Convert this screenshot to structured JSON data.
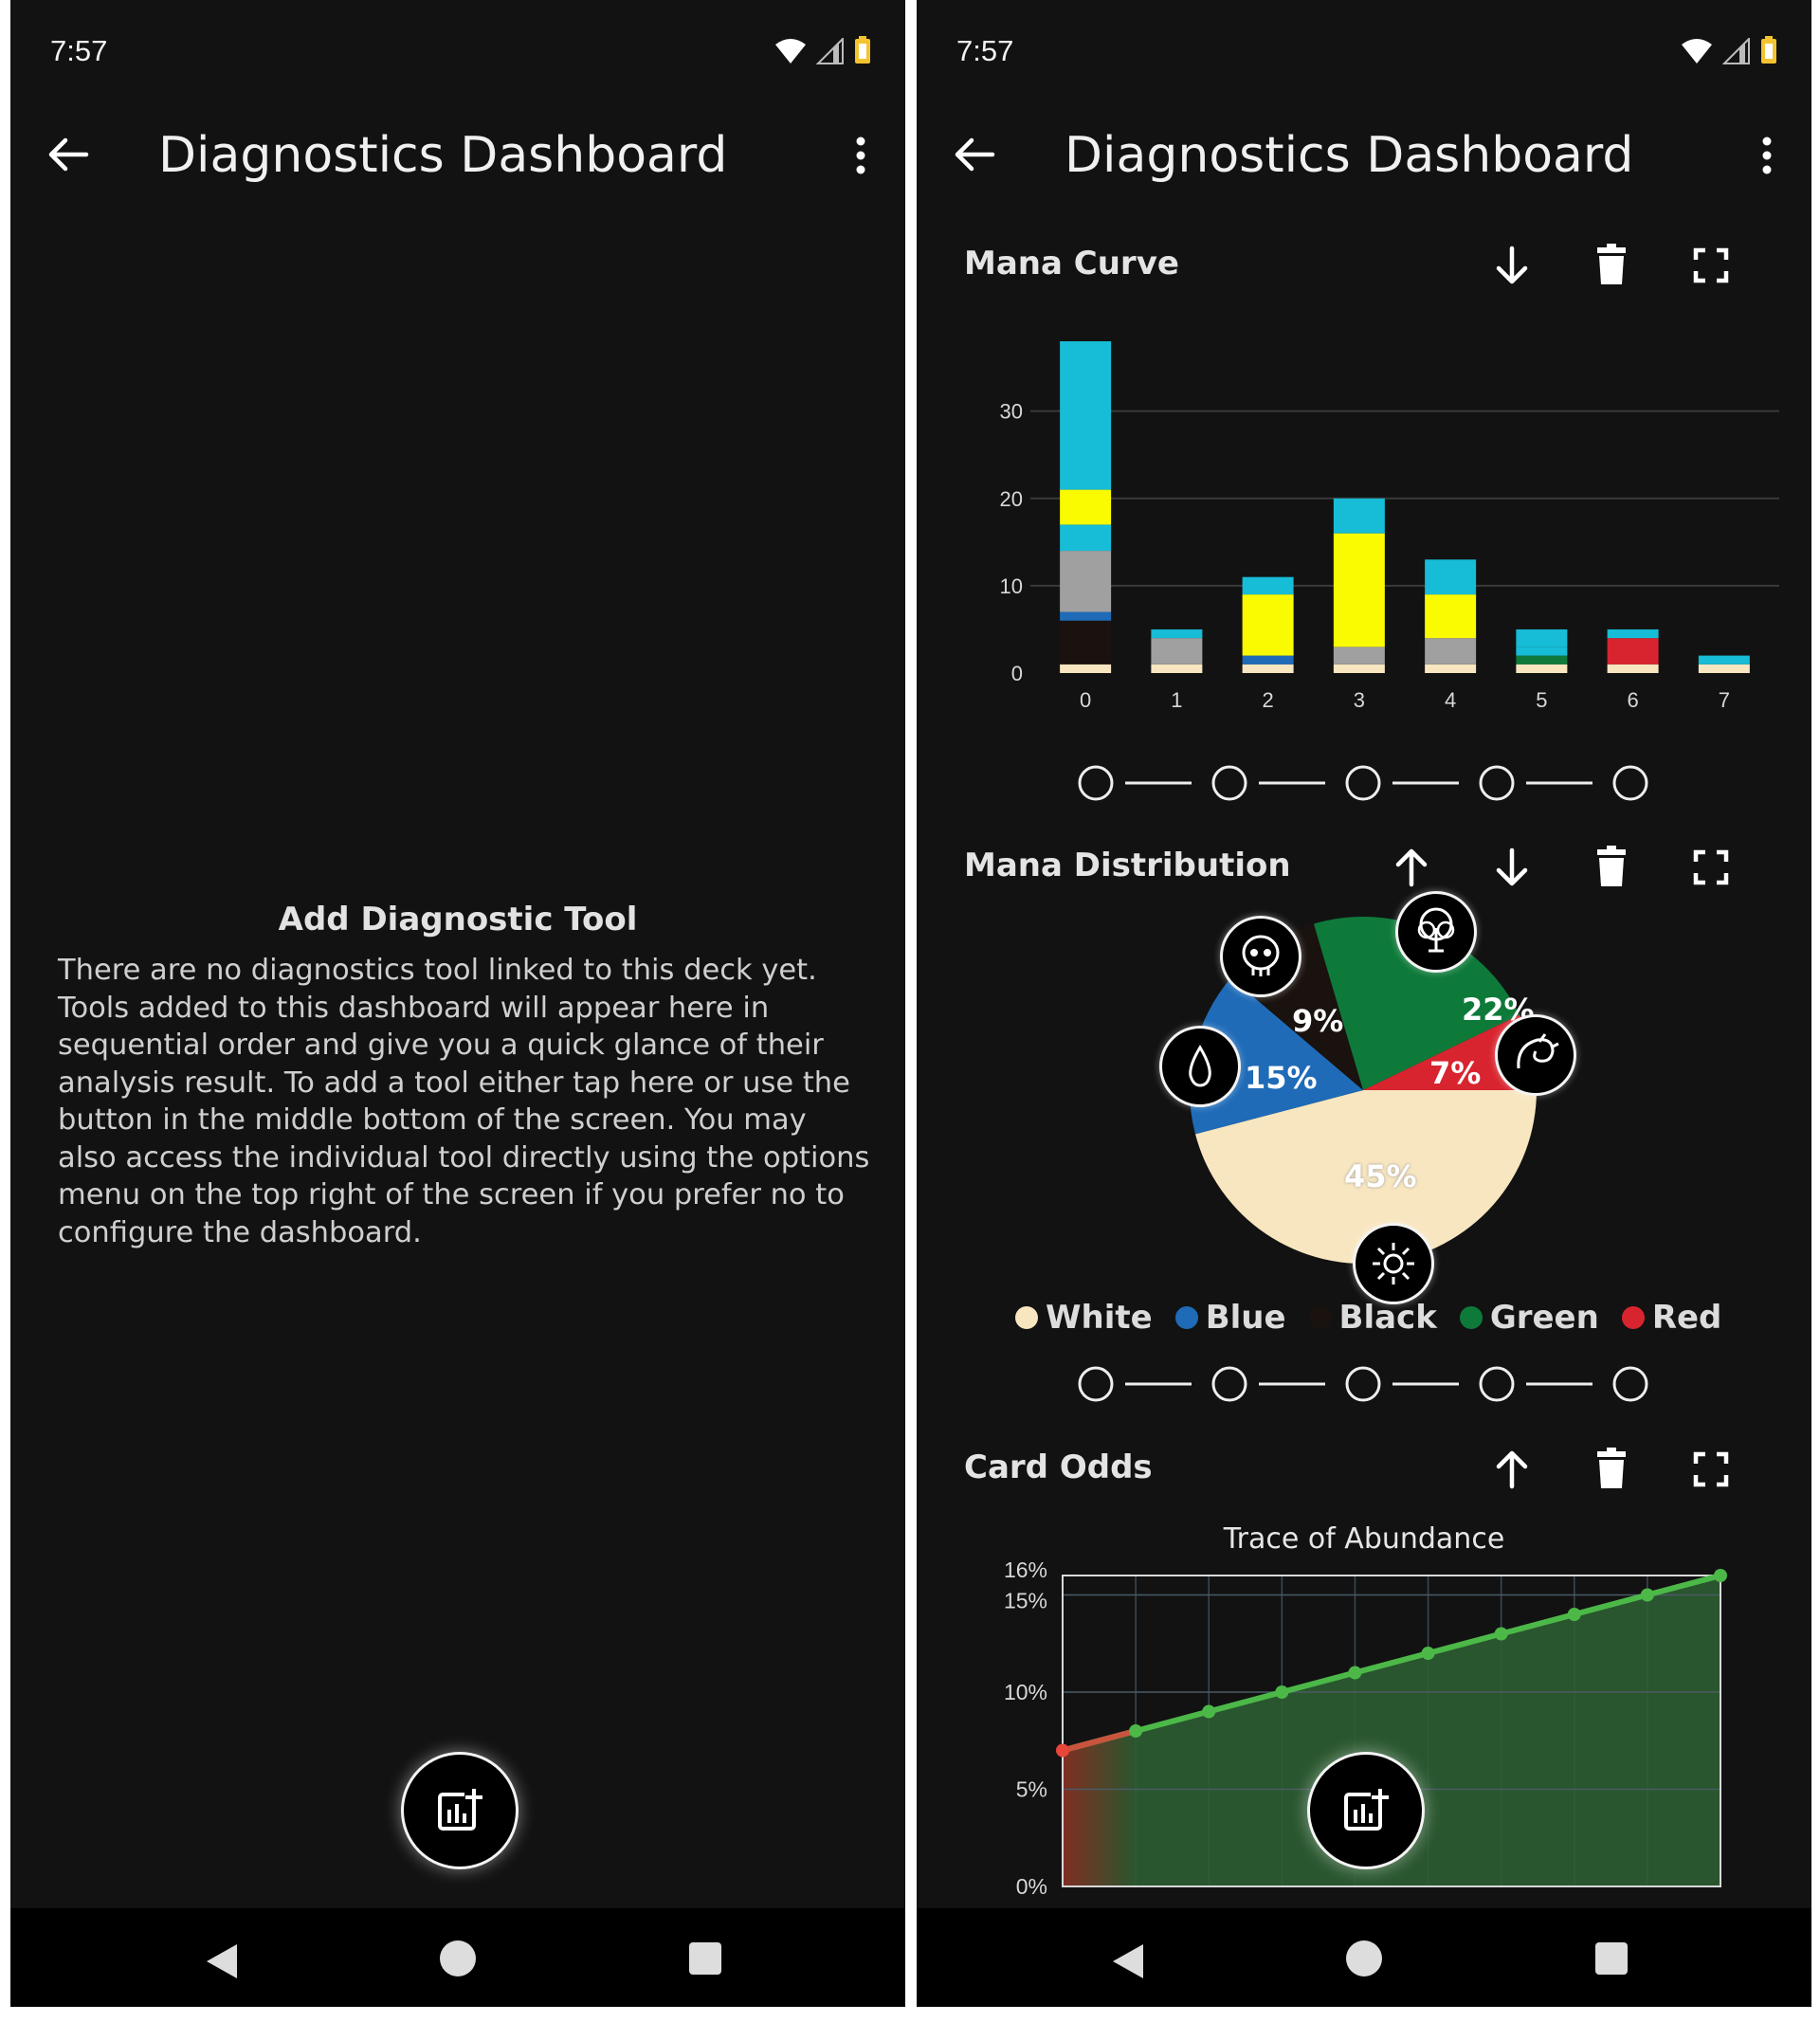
{
  "status": {
    "time": "7:57"
  },
  "appbar": {
    "title": "Diagnostics Dashboard"
  },
  "left": {
    "empty_title": "Add Diagnostic Tool",
    "empty_body": "There are no diagnostics tool linked to this deck yet. Tools added to this dashboard will appear here in sequential order and give you a quick glance of their analysis result. To add a tool either tap here or use the button in the middle bottom of the screen. You may also access the individual tool directly using the options menu on the top right of the screen if you prefer no to configure the dashboard."
  },
  "sections": {
    "mana_curve": "Mana Curve",
    "mana_distribution": "Mana Distribution",
    "card_odds": "Card Odds"
  },
  "pie_labels": {
    "white": "45%",
    "blue": "15%",
    "black": "9%",
    "green": "22%",
    "red": "7%"
  },
  "legend": [
    {
      "label": "White",
      "color": "#f8e6c0"
    },
    {
      "label": "Blue",
      "color": "#1f6bb8"
    },
    {
      "label": "Black",
      "color": "#1a120e"
    },
    {
      "label": "Green",
      "color": "#0e7a3a"
    },
    {
      "label": "Red",
      "color": "#d8242e"
    }
  ],
  "colors": {
    "background": "#121212",
    "cyan": "#17bcd6",
    "yellow": "#fafa00",
    "gray": "#a0a0a0",
    "cream": "#f8e6c0",
    "blue": "#1f6bb8",
    "black": "#1a120e",
    "green": "#0e7a3a",
    "red": "#d8242e",
    "line_green": "#4cb848"
  },
  "icons": [
    "arrow-back-icon",
    "more-vert-icon",
    "arrow-down-icon",
    "arrow-up-icon",
    "delete-icon",
    "fullscreen-icon",
    "add-chart-icon",
    "skull-icon",
    "tree-icon",
    "dragon-icon",
    "water-drop-icon",
    "sun-icon",
    "wifi-icon",
    "signal-icon",
    "battery-icon"
  ],
  "chart_data": [
    {
      "type": "bar",
      "title": "",
      "categories": [
        "0",
        "1",
        "2",
        "3",
        "4",
        "5",
        "6",
        "7"
      ],
      "ylim": [
        0,
        38
      ],
      "yticks": [
        "0",
        "10",
        "20",
        "30"
      ],
      "grid": true,
      "stacked": true,
      "series": [
        {
          "color": "#f8e6c0",
          "values": [
            1,
            1,
            1,
            1,
            1,
            1,
            1,
            1
          ]
        },
        {
          "color": "#1a120e",
          "values": [
            5,
            0,
            0,
            0,
            0,
            0,
            0,
            0
          ]
        },
        {
          "color": "#1f6bb8",
          "values": [
            1,
            0,
            1,
            0,
            0,
            0,
            0,
            0
          ]
        },
        {
          "color": "#0e7a3a",
          "values": [
            0,
            0,
            0,
            0,
            0,
            1,
            0,
            0
          ]
        },
        {
          "color": "#d8242e",
          "values": [
            0,
            0,
            0,
            0,
            0,
            0,
            3,
            0
          ]
        },
        {
          "color": "#a0a0a0",
          "values": [
            7,
            3,
            0,
            2,
            3,
            0,
            0,
            0
          ]
        },
        {
          "color": "#17bcd6",
          "values": [
            3,
            0,
            0,
            0,
            0,
            1,
            0,
            0
          ]
        },
        {
          "color": "#fafa00",
          "values": [
            4,
            0,
            7,
            13,
            5,
            0,
            0,
            0
          ]
        },
        {
          "color": "#17bcd6",
          "values": [
            17,
            1,
            2,
            4,
            4,
            2,
            1,
            1
          ]
        }
      ]
    },
    {
      "type": "pie",
      "title": "",
      "slices": [
        {
          "label": "White",
          "value": 45,
          "color": "#f8e6c0"
        },
        {
          "label": "Blue",
          "value": 15,
          "color": "#1f6bb8"
        },
        {
          "label": "Black",
          "value": 9,
          "color": "#1a120e"
        },
        {
          "label": "Green",
          "value": 22,
          "color": "#0e7a3a"
        },
        {
          "label": "Red",
          "value": 7,
          "color": "#d8242e"
        }
      ]
    },
    {
      "type": "area",
      "title": "Trace of Abundance",
      "x": [
        0,
        1,
        2,
        3,
        4,
        5,
        6,
        7,
        8,
        9
      ],
      "values": [
        7.0,
        8.0,
        9.0,
        10.0,
        11.0,
        12.0,
        13.0,
        14.0,
        15.0,
        16.0
      ],
      "ylim": [
        0,
        16
      ],
      "yticks": [
        "0%",
        "5%",
        "10%",
        "15%",
        "16%"
      ],
      "grid": true
    }
  ]
}
